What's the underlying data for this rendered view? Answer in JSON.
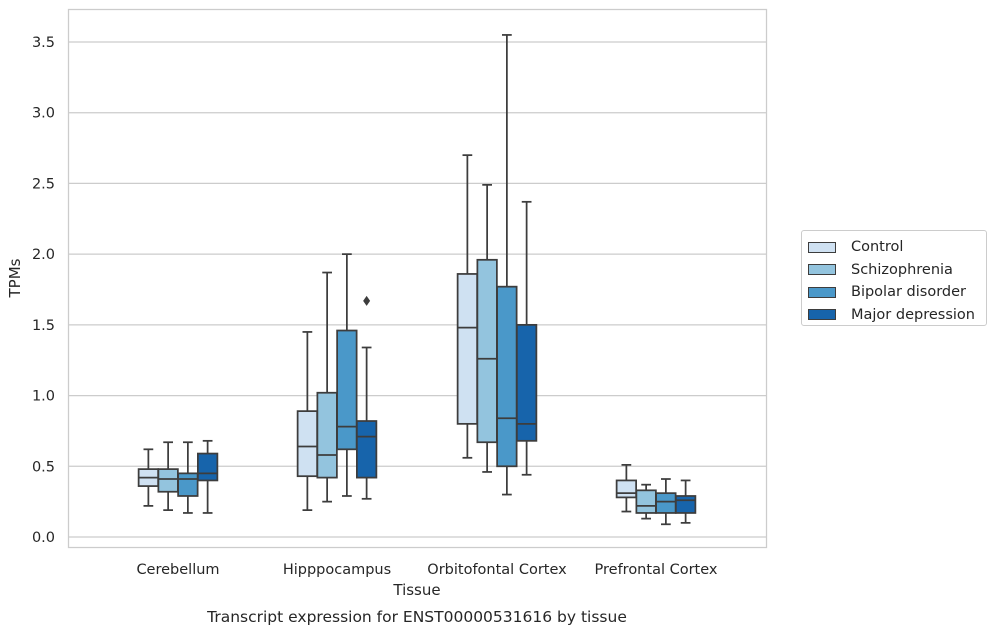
{
  "chart_data": {
    "type": "box",
    "caption": "Transcript expression for ENST00000531616 by tissue",
    "xlabel": "Tissue",
    "ylabel": "TPMs",
    "ylim": [
      -0.07,
      3.7
    ],
    "yticks": [
      "0.0",
      "0.5",
      "1.0",
      "1.5",
      "2.0",
      "2.5",
      "3.0",
      "3.5"
    ],
    "ytick_values": [
      0.0,
      0.5,
      1.0,
      1.5,
      2.0,
      2.5,
      3.0,
      3.5
    ],
    "grid": true,
    "legend_position": "right",
    "categories": [
      "Cerebellum",
      "Hipppocampus",
      "Orbitofontal Cortex",
      "Prefrontal Cortex"
    ],
    "series": [
      {
        "name": "Control",
        "color": "#cfe1f2",
        "boxes": [
          {
            "whislo": 0.22,
            "q1": 0.36,
            "med": 0.42,
            "q3": 0.48,
            "whishi": 0.62,
            "fliers": []
          },
          {
            "whislo": 0.19,
            "q1": 0.43,
            "med": 0.64,
            "q3": 0.89,
            "whishi": 1.45,
            "fliers": []
          },
          {
            "whislo": 0.56,
            "q1": 0.8,
            "med": 1.48,
            "q3": 1.86,
            "whishi": 2.7,
            "fliers": []
          },
          {
            "whislo": 0.18,
            "q1": 0.28,
            "med": 0.31,
            "q3": 0.4,
            "whishi": 0.51,
            "fliers": []
          }
        ]
      },
      {
        "name": "Schizophrenia",
        "color": "#93c4de",
        "boxes": [
          {
            "whislo": 0.19,
            "q1": 0.32,
            "med": 0.41,
            "q3": 0.48,
            "whishi": 0.67,
            "fliers": []
          },
          {
            "whislo": 0.25,
            "q1": 0.42,
            "med": 0.58,
            "q3": 1.02,
            "whishi": 1.87,
            "fliers": []
          },
          {
            "whislo": 0.46,
            "q1": 0.67,
            "med": 1.26,
            "q3": 1.96,
            "whishi": 2.49,
            "fliers": []
          },
          {
            "whislo": 0.13,
            "q1": 0.17,
            "med": 0.22,
            "q3": 0.33,
            "whishi": 0.37,
            "fliers": []
          }
        ]
      },
      {
        "name": "Bipolar disorder",
        "color": "#4a98c9",
        "boxes": [
          {
            "whislo": 0.17,
            "q1": 0.29,
            "med": 0.41,
            "q3": 0.45,
            "whishi": 0.67,
            "fliers": []
          },
          {
            "whislo": 0.29,
            "q1": 0.62,
            "med": 0.78,
            "q3": 1.46,
            "whishi": 2.0,
            "fliers": []
          },
          {
            "whislo": 0.3,
            "q1": 0.5,
            "med": 0.84,
            "q3": 1.77,
            "whishi": 3.55,
            "fliers": []
          },
          {
            "whislo": 0.09,
            "q1": 0.17,
            "med": 0.25,
            "q3": 0.31,
            "whishi": 0.41,
            "fliers": []
          }
        ]
      },
      {
        "name": "Major depression",
        "color": "#1764ab",
        "boxes": [
          {
            "whislo": 0.17,
            "q1": 0.4,
            "med": 0.45,
            "q3": 0.59,
            "whishi": 0.68,
            "fliers": []
          },
          {
            "whislo": 0.27,
            "q1": 0.42,
            "med": 0.71,
            "q3": 0.82,
            "whishi": 1.34,
            "fliers": [
              1.67
            ]
          },
          {
            "whislo": 0.44,
            "q1": 0.68,
            "med": 0.8,
            "q3": 1.5,
            "whishi": 2.37,
            "fliers": []
          },
          {
            "whislo": 0.1,
            "q1": 0.17,
            "med": 0.26,
            "q3": 0.29,
            "whishi": 0.4,
            "fliers": []
          }
        ]
      }
    ]
  }
}
